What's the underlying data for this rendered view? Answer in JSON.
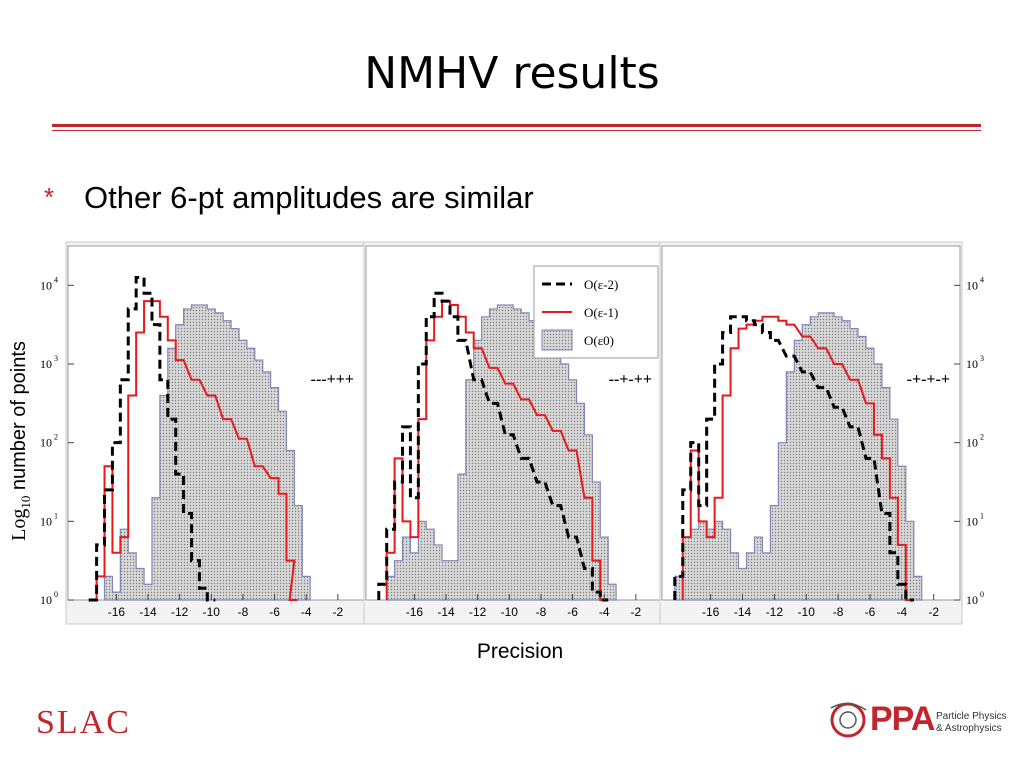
{
  "slide": {
    "title": "NMHV results",
    "bullet_marker": "*",
    "bullet": "Other 6-pt amplitudes are similar",
    "ylabel_prefix": "Log",
    "ylabel_sub": "10",
    "ylabel_rest": " number of points",
    "xlabel": "Precision"
  },
  "logos": {
    "slac": "SLAC",
    "ppa": "PPA",
    "ppa_line1": "Particle Physics",
    "ppa_line2": "& Astrophysics"
  },
  "colors": {
    "accent": "#c0272d",
    "eps_m2": "#000000",
    "eps_m1": "#e8191c",
    "eps_0_fill": "#c9c9c9",
    "eps_0_edge": "#7f86b8"
  },
  "chart_data": [
    {
      "type": "histogram",
      "label": "---+++",
      "x_ticks": [
        "-16",
        "-14",
        "-12",
        "-10",
        "-8",
        "-6",
        "-4",
        "-2"
      ],
      "y_ticks": [
        "10",
        "10",
        "10",
        "10",
        "10"
      ],
      "y_exponents": [
        "0",
        "1",
        "2",
        "3",
        "4"
      ],
      "xlim": [
        -18.3,
        -0.6
      ],
      "ylim_log10": [
        0,
        4.5
      ],
      "series": [
        {
          "name": "O(ε-2)",
          "style": "dashed",
          "x": [
            -17.5,
            -17,
            -16.5,
            -16,
            -15.5,
            -15,
            -14.5,
            -14,
            -13.5,
            -13,
            -12.5,
            -12,
            -11.5,
            -11,
            -10.5,
            -10
          ],
          "log10": [
            0,
            0.7,
            1.4,
            2.0,
            2.8,
            3.7,
            4.1,
            3.9,
            3.5,
            2.8,
            2.3,
            1.6,
            1.1,
            0.5,
            0.15,
            0
          ]
        },
        {
          "name": "O(ε-1)",
          "style": "solid",
          "x": [
            -17,
            -16.5,
            -16,
            -15.5,
            -15,
            -14.5,
            -14,
            -13.5,
            -13,
            -12.5,
            -12,
            -11,
            -10,
            -9,
            -8,
            -7,
            -6,
            -5.5,
            -5,
            -4.8
          ],
          "log10": [
            0.3,
            1.7,
            0.6,
            0.8,
            2.6,
            3.4,
            3.8,
            3.8,
            3.6,
            3.3,
            3.05,
            2.8,
            2.6,
            2.3,
            2.05,
            1.7,
            1.55,
            1.35,
            0.5,
            0
          ]
        },
        {
          "name": "O(ε0)",
          "style": "filled",
          "x": [
            -16.5,
            -16,
            -15.5,
            -15,
            -14.5,
            -14,
            -13.5,
            -13,
            -12.5,
            -12,
            -11.5,
            -11,
            -10.5,
            -10,
            -9.5,
            -9,
            -8.5,
            -8,
            -7.5,
            -7,
            -6.5,
            -6,
            -5.5,
            -5,
            -4.5,
            -4
          ],
          "log10": [
            0.3,
            0.1,
            0.9,
            0.6,
            0.4,
            0.2,
            1.3,
            2.6,
            3.2,
            3.5,
            3.7,
            3.75,
            3.75,
            3.7,
            3.65,
            3.55,
            3.45,
            3.3,
            3.2,
            3.05,
            2.9,
            2.7,
            2.4,
            1.9,
            1.2,
            0.3
          ]
        }
      ]
    },
    {
      "type": "histogram",
      "label": "--+-++",
      "x_ticks": [
        "-16",
        "-14",
        "-12",
        "-10",
        "-8",
        "-6",
        "-4",
        "-2"
      ],
      "xlim": [
        -18.3,
        -0.6
      ],
      "ylim_log10": [
        0,
        4.5
      ],
      "legend": [
        "O(ε-2)",
        "O(ε-1)",
        "O(ε0)"
      ],
      "legend_pos": "top-right",
      "series": [
        {
          "name": "O(ε-2)",
          "style": "dashed",
          "x": [
            -18,
            -17.5,
            -17,
            -16.5,
            -16,
            -15.5,
            -15,
            -14.5,
            -14,
            -13.5,
            -13,
            -12,
            -11,
            -10,
            -9,
            -8,
            -7,
            -6,
            -5,
            -4.5,
            -4
          ],
          "log10": [
            0.2,
            0.9,
            1.5,
            2.2,
            1.3,
            3.0,
            3.6,
            3.9,
            3.8,
            3.6,
            3.3,
            2.8,
            2.5,
            2.1,
            1.8,
            1.5,
            1.2,
            0.8,
            0.4,
            0.1,
            0
          ]
        },
        {
          "name": "O(ε-1)",
          "style": "solid",
          "x": [
            -17.5,
            -17,
            -16.5,
            -16,
            -15.5,
            -15,
            -14.5,
            -14,
            -13.5,
            -13,
            -12.5,
            -12,
            -11,
            -10,
            -9,
            -8,
            -7,
            -6,
            -5,
            -4.5,
            -4
          ],
          "log10": [
            0.6,
            1.8,
            1.0,
            0.8,
            2.3,
            3.3,
            3.6,
            3.8,
            3.75,
            3.6,
            3.4,
            3.2,
            2.95,
            2.75,
            2.55,
            2.35,
            2.15,
            1.9,
            1.3,
            0.5,
            0
          ]
        },
        {
          "name": "O(ε0)",
          "style": "filled",
          "x": [
            -17.5,
            -17,
            -16.5,
            -16,
            -15.5,
            -15,
            -14.5,
            -14,
            -13.5,
            -13,
            -12.5,
            -12,
            -11.5,
            -11,
            -10.5,
            -10,
            -9.5,
            -9,
            -8.5,
            -8,
            -7.5,
            -7,
            -6.5,
            -6,
            -5.5,
            -5,
            -4.5,
            -4,
            -3.5
          ],
          "log10": [
            0.3,
            0.5,
            0.8,
            0.6,
            1.0,
            0.9,
            0.7,
            0.5,
            0.5,
            1.6,
            2.8,
            3.3,
            3.6,
            3.7,
            3.75,
            3.75,
            3.7,
            3.65,
            3.55,
            3.45,
            3.35,
            3.2,
            3.0,
            2.8,
            2.5,
            2.1,
            1.5,
            0.8,
            0.2
          ]
        }
      ]
    },
    {
      "type": "histogram",
      "label": "-+-+-+",
      "x_ticks": [
        "-16",
        "-14",
        "-12",
        "-10",
        "-8",
        "-6",
        "-4",
        "-2"
      ],
      "y_ticks": [
        "10",
        "10",
        "10",
        "10",
        "10"
      ],
      "y_exponents": [
        "0",
        "1",
        "2",
        "3",
        "4"
      ],
      "xlim": [
        -18.3,
        -0.6
      ],
      "ylim_log10": [
        0,
        4.5
      ],
      "series": [
        {
          "name": "O(ε-2)",
          "style": "dashed",
          "x": [
            -18,
            -17.5,
            -17,
            -16.5,
            -16,
            -15.5,
            -15,
            -14.5,
            -14,
            -13.5,
            -13,
            -12.5,
            -12,
            -11,
            -10,
            -9,
            -8,
            -7,
            -6,
            -5,
            -4.5,
            -4,
            -3.5
          ],
          "log10": [
            0.3,
            1.4,
            2.0,
            1.2,
            2.3,
            3.0,
            3.4,
            3.6,
            3.6,
            3.55,
            3.5,
            3.4,
            3.3,
            3.1,
            2.9,
            2.7,
            2.45,
            2.2,
            1.8,
            1.1,
            0.6,
            0.2,
            0
          ]
        },
        {
          "name": "O(ε-1)",
          "style": "solid",
          "x": [
            -17.5,
            -17,
            -16.5,
            -16,
            -15.5,
            -15,
            -14.5,
            -14,
            -13.5,
            -13,
            -12.5,
            -12,
            -11.5,
            -11,
            -10,
            -9,
            -8,
            -7,
            -6,
            -5.5,
            -5,
            -4.5,
            -4,
            -3.5
          ],
          "log10": [
            0.8,
            1.9,
            1.0,
            0.8,
            1.3,
            2.6,
            3.2,
            3.45,
            3.5,
            3.55,
            3.6,
            3.6,
            3.55,
            3.5,
            3.35,
            3.2,
            3.0,
            2.8,
            2.5,
            2.1,
            1.8,
            1.3,
            0.7,
            0
          ]
        },
        {
          "name": "O(ε0)",
          "style": "filled",
          "x": [
            -18,
            -17.5,
            -17,
            -16.5,
            -16,
            -15.5,
            -15,
            -14.5,
            -14,
            -13.5,
            -13,
            -12.5,
            -12,
            -11.5,
            -11,
            -10.5,
            -10,
            -9.5,
            -9,
            -8.5,
            -8,
            -7.5,
            -7,
            -6.5,
            -6,
            -5.5,
            -5,
            -4.5,
            -4,
            -3.5,
            -3
          ],
          "log10": [
            0.3,
            0.8,
            0.9,
            1.0,
            0.9,
            1.0,
            0.9,
            0.6,
            0.4,
            0.6,
            0.8,
            0.6,
            1.2,
            2.0,
            2.9,
            3.3,
            3.5,
            3.6,
            3.65,
            3.65,
            3.6,
            3.55,
            3.45,
            3.35,
            3.2,
            3.0,
            2.7,
            2.3,
            1.7,
            1.0,
            0.3
          ]
        }
      ]
    }
  ]
}
